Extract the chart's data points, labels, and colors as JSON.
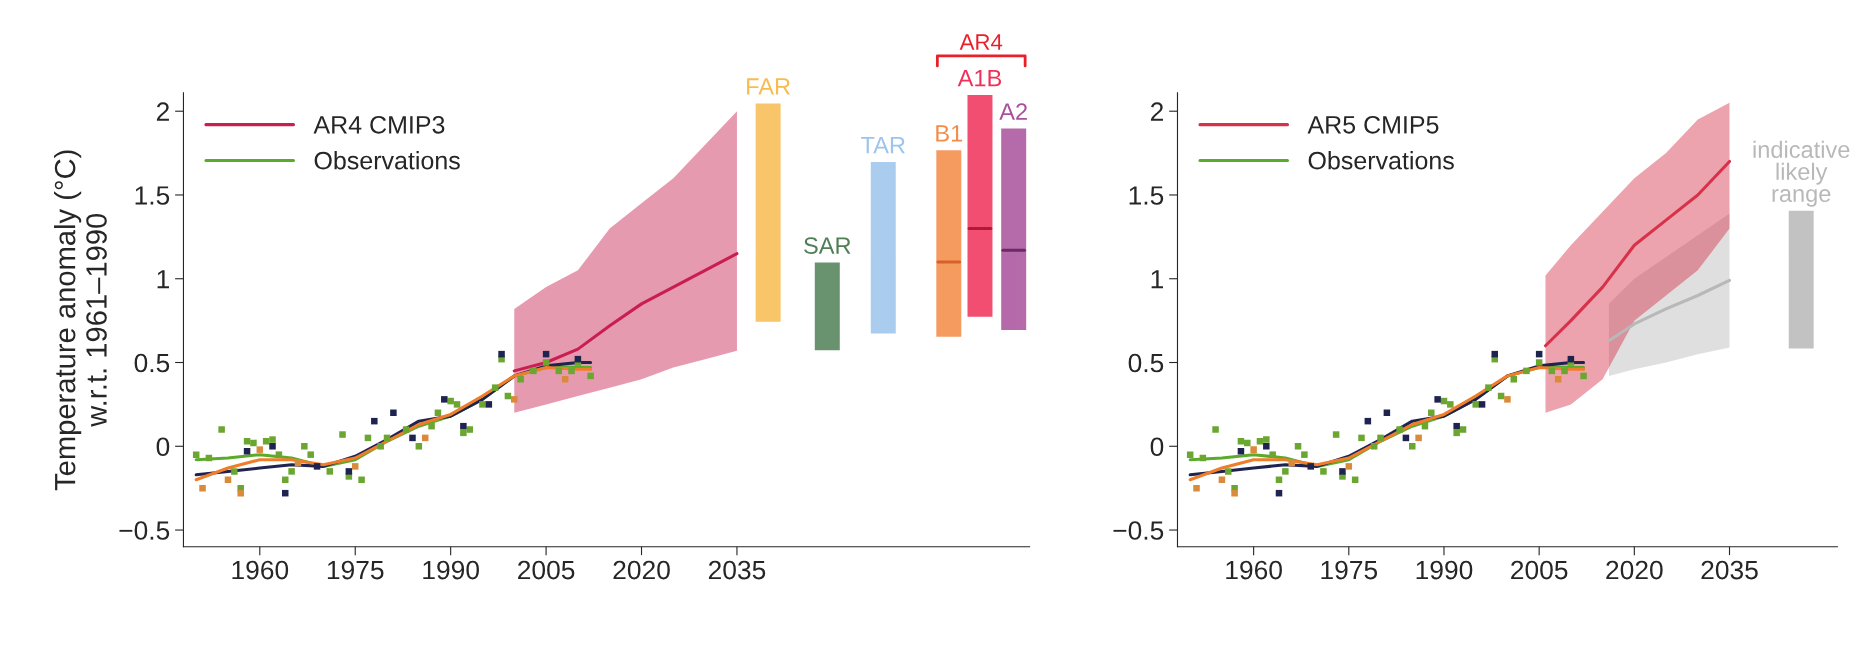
{
  "chart_data": [
    {
      "type": "line",
      "ylabel": "Temperature anomaly (°C)\nw.r.t. 1961–1990",
      "xlim": [
        1948,
        2081
      ],
      "ylim": [
        -0.6,
        2.11
      ],
      "xticks": [
        1960,
        1975,
        1990,
        2005,
        2020,
        2035
      ],
      "yticks": [
        {
          "value": -0.5,
          "label": "−0.5"
        },
        0,
        0.5,
        1,
        1.5,
        2
      ],
      "legend": "top left",
      "annotations": [
        "AR4"
      ],
      "series": [
        {
          "name": "AR4 CMIP3",
          "color": "#c81e50",
          "x": [
            2000,
            2005,
            2010,
            2015,
            2020,
            2025,
            2030,
            2035
          ],
          "values": [
            0.45,
            0.5,
            0.58,
            0.72,
            0.85,
            0.95,
            1.05,
            1.15
          ],
          "lower": [
            0.2,
            0.25,
            0.3,
            0.35,
            0.4,
            0.47,
            0.52,
            0.57
          ],
          "upper": [
            0.82,
            0.95,
            1.05,
            1.3,
            1.45,
            1.6,
            1.8,
            2.0
          ]
        },
        {
          "type": "line",
          "name": "Observations",
          "color": "#5aab2c",
          "x": [
            1950,
            1955,
            1960,
            1965,
            1970,
            1975,
            1980,
            1985,
            1990,
            1995,
            2000,
            2005,
            2010,
            2012
          ],
          "values": [
            -0.08,
            -0.07,
            -0.05,
            -0.07,
            -0.12,
            -0.08,
            0.03,
            0.12,
            0.18,
            0.28,
            0.42,
            0.47,
            0.47,
            0.47
          ]
        },
        {
          "type": "line",
          "color": "#1f2350",
          "x": [
            1950,
            1955,
            1960,
            1965,
            1970,
            1975,
            1980,
            1985,
            1990,
            1995,
            2000,
            2005,
            2010,
            2012
          ],
          "values": [
            -0.17,
            -0.15,
            -0.13,
            -0.11,
            -0.12,
            -0.06,
            0.04,
            0.15,
            0.18,
            0.28,
            0.42,
            0.48,
            0.5,
            0.5
          ]
        },
        {
          "type": "line",
          "color": "#ef7d2a",
          "x": [
            1950,
            1955,
            1960,
            1965,
            1970,
            1975,
            1980,
            1985,
            1990,
            1995,
            2000,
            2005,
            2010,
            2012
          ],
          "values": [
            -0.2,
            -0.13,
            -0.08,
            -0.08,
            -0.11,
            -0.07,
            0.03,
            0.13,
            0.19,
            0.3,
            0.42,
            0.47,
            0.46,
            0.46
          ]
        },
        {
          "type": "scatter",
          "marker": "square",
          "color": "#6aa630",
          "x": [
            1950,
            1952,
            1954,
            1956,
            1957,
            1958,
            1959,
            1961,
            1962,
            1963,
            1964,
            1965,
            1967,
            1968,
            1971,
            1973,
            1974,
            1976,
            1977,
            1979,
            1980,
            1983,
            1985,
            1987,
            1988,
            1990,
            1991,
            1992,
            1993,
            1995,
            1997,
            1998,
            1999,
            2001,
            2003,
            2005,
            2007,
            2009,
            2010,
            2012
          ],
          "values": [
            -0.05,
            -0.07,
            0.1,
            -0.15,
            -0.25,
            0.03,
            0.02,
            0.03,
            0.04,
            -0.05,
            -0.2,
            -0.15,
            0.0,
            -0.05,
            -0.15,
            0.07,
            -0.18,
            -0.2,
            0.05,
            0.0,
            0.05,
            0.1,
            0.0,
            0.12,
            0.2,
            0.27,
            0.25,
            0.08,
            0.1,
            0.25,
            0.35,
            0.52,
            0.3,
            0.4,
            0.45,
            0.5,
            0.45,
            0.45,
            0.5,
            0.42
          ]
        },
        {
          "type": "scatter",
          "marker": "square",
          "color": "#1f2350",
          "x": [
            1958,
            1962,
            1964,
            1969,
            1974,
            1978,
            1981,
            1984,
            1989,
            1992,
            1996,
            1998,
            2005,
            2010
          ],
          "values": [
            -0.03,
            0.0,
            -0.28,
            -0.12,
            -0.15,
            0.15,
            0.2,
            0.05,
            0.28,
            0.12,
            0.25,
            0.55,
            0.55,
            0.52
          ]
        },
        {
          "type": "scatter",
          "marker": "square",
          "color": "#d98a3a",
          "x": [
            1951,
            1955,
            1957,
            1960,
            1966,
            1975,
            1986,
            2000,
            2008
          ],
          "values": [
            -0.25,
            -0.2,
            -0.28,
            -0.02,
            -0.1,
            -0.12,
            0.05,
            0.28,
            0.4
          ]
        },
        {
          "type": "bar",
          "name": "FAR",
          "color": "#f8bb50",
          "x": [
            2039.9
          ],
          "base": [
            0.75
          ],
          "values": [
            1.29
          ]
        },
        {
          "type": "bar",
          "name": "SAR",
          "color": "#4f7f55",
          "x": [
            2049.2
          ],
          "base": [
            0.58
          ],
          "values": [
            0.51
          ]
        },
        {
          "type": "bar",
          "name": "TAR",
          "color": "#9cc4ec",
          "x": [
            2058.0
          ],
          "base": [
            0.68
          ],
          "values": [
            1.01
          ]
        },
        {
          "type": "bar",
          "name": "B1",
          "color": "#f58a45",
          "x": [
            2068.3
          ],
          "base": [
            0.66
          ],
          "values": [
            1.1
          ]
        },
        {
          "type": "bar",
          "name": "A1B",
          "color": "#f0305a",
          "x": [
            2073.2
          ],
          "base": [
            0.78
          ],
          "values": [
            1.31
          ]
        },
        {
          "type": "bar",
          "name": "A2",
          "color": "#a9509c",
          "x": [
            2078.5
          ],
          "base": [
            0.7
          ],
          "values": [
            1.19
          ]
        },
        {
          "type": "line",
          "color": "#d8602a",
          "x": [
            2066.6,
            2070.0
          ],
          "values": [
            1.1,
            1.1
          ]
        },
        {
          "type": "line",
          "color": "#b0183c",
          "x": [
            2071.5,
            2074.9
          ],
          "values": [
            1.3,
            1.3
          ]
        },
        {
          "type": "line",
          "color": "#6e2a66",
          "x": [
            2076.8,
            2080.2
          ],
          "values": [
            1.17,
            1.17
          ]
        }
      ]
    },
    {
      "type": "line",
      "xlim": [
        1948,
        2052
      ],
      "ylim": [
        -0.6,
        2.11
      ],
      "xticks": [
        1960,
        1975,
        1990,
        2005,
        2020,
        2035
      ],
      "yticks": [
        {
          "value": -0.5,
          "label": "−0.5"
        },
        0,
        0.5,
        1,
        1.5,
        2
      ],
      "legend": "top left",
      "series": [
        {
          "color": "#b8b8b8",
          "x": [
            2016,
            2020,
            2025,
            2030,
            2035
          ],
          "values": [
            0.63,
            0.73,
            0.82,
            0.9,
            0.99
          ],
          "lower": [
            0.42,
            0.46,
            0.5,
            0.55,
            0.59
          ],
          "upper": [
            0.85,
            1.0,
            1.13,
            1.26,
            1.39
          ]
        },
        {
          "name": "AR5 CMIP5",
          "color": "#d8324a",
          "x": [
            2006,
            2010,
            2015,
            2020,
            2025,
            2030,
            2035
          ],
          "values": [
            0.6,
            0.75,
            0.95,
            1.2,
            1.35,
            1.5,
            1.7
          ],
          "lower": [
            0.2,
            0.25,
            0.4,
            0.75,
            0.9,
            1.05,
            1.3
          ],
          "upper": [
            1.02,
            1.2,
            1.4,
            1.6,
            1.75,
            1.95,
            2.05
          ]
        },
        {
          "type": "line",
          "name": "Observations",
          "color": "#5aab2c",
          "x": [
            1950,
            1955,
            1960,
            1965,
            1970,
            1975,
            1980,
            1985,
            1990,
            1995,
            2000,
            2005,
            2010,
            2012
          ],
          "values": [
            -0.08,
            -0.07,
            -0.05,
            -0.07,
            -0.12,
            -0.08,
            0.03,
            0.12,
            0.18,
            0.28,
            0.42,
            0.47,
            0.47,
            0.47
          ]
        },
        {
          "type": "line",
          "color": "#1f2350",
          "x": [
            1950,
            1955,
            1960,
            1965,
            1970,
            1975,
            1980,
            1985,
            1990,
            1995,
            2000,
            2005,
            2010,
            2012
          ],
          "values": [
            -0.17,
            -0.15,
            -0.13,
            -0.11,
            -0.12,
            -0.06,
            0.04,
            0.15,
            0.18,
            0.28,
            0.42,
            0.48,
            0.5,
            0.5
          ]
        },
        {
          "type": "line",
          "color": "#ef7d2a",
          "x": [
            1950,
            1955,
            1960,
            1965,
            1970,
            1975,
            1980,
            1985,
            1990,
            1995,
            2000,
            2005,
            2010,
            2012
          ],
          "values": [
            -0.2,
            -0.13,
            -0.08,
            -0.08,
            -0.11,
            -0.07,
            0.03,
            0.13,
            0.19,
            0.3,
            0.42,
            0.47,
            0.46,
            0.46
          ]
        },
        {
          "type": "scatter",
          "marker": "square",
          "color": "#6aa630",
          "x": [
            1950,
            1952,
            1954,
            1956,
            1957,
            1958,
            1959,
            1961,
            1962,
            1963,
            1964,
            1965,
            1967,
            1968,
            1971,
            1973,
            1974,
            1976,
            1977,
            1979,
            1980,
            1983,
            1985,
            1987,
            1988,
            1990,
            1991,
            1992,
            1993,
            1995,
            1997,
            1998,
            1999,
            2001,
            2003,
            2005,
            2007,
            2009,
            2010,
            2012
          ],
          "values": [
            -0.05,
            -0.07,
            0.1,
            -0.15,
            -0.25,
            0.03,
            0.02,
            0.03,
            0.04,
            -0.05,
            -0.2,
            -0.15,
            0.0,
            -0.05,
            -0.15,
            0.07,
            -0.18,
            -0.2,
            0.05,
            0.0,
            0.05,
            0.1,
            0.0,
            0.12,
            0.2,
            0.27,
            0.25,
            0.08,
            0.1,
            0.25,
            0.35,
            0.52,
            0.3,
            0.4,
            0.45,
            0.5,
            0.45,
            0.45,
            0.5,
            0.42
          ]
        },
        {
          "type": "scatter",
          "marker": "square",
          "color": "#1f2350",
          "x": [
            1958,
            1962,
            1964,
            1969,
            1974,
            1978,
            1981,
            1984,
            1989,
            1992,
            1996,
            1998,
            2005,
            2010
          ],
          "values": [
            -0.03,
            0.0,
            -0.28,
            -0.12,
            -0.15,
            0.15,
            0.2,
            0.05,
            0.28,
            0.12,
            0.25,
            0.55,
            0.55,
            0.52
          ]
        },
        {
          "type": "scatter",
          "marker": "square",
          "color": "#d98a3a",
          "x": [
            1951,
            1955,
            1957,
            1960,
            1966,
            1975,
            1986,
            2000,
            2008
          ],
          "values": [
            -0.25,
            -0.2,
            -0.28,
            -0.02,
            -0.1,
            -0.12,
            0.05,
            0.28,
            0.4
          ]
        },
        {
          "type": "bar",
          "name": "indicative\nlikely\nrange",
          "color": "#b8b8b8",
          "x": [
            2046.3
          ],
          "base": [
            0.59
          ],
          "values": [
            0.81
          ]
        }
      ]
    }
  ]
}
